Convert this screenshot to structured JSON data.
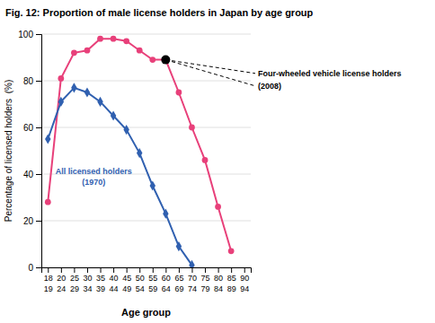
{
  "chart_data": {
    "type": "line",
    "title": "Fig. 12: Proportion of male license holders in Japan by age group",
    "x_label": "Age group",
    "y_label": "Percentage of licensed holders  (%)",
    "categories": [
      "18\n19",
      "20\n24",
      "25\n29",
      "30\n34",
      "35\n39",
      "40\n44",
      "45\n49",
      "50\n54",
      "55\n59",
      "60\n64",
      "65\n69",
      "70\n74",
      "75\n79",
      "80\n84",
      "85\n89",
      "90\n94"
    ],
    "series": [
      {
        "color": "#e8407a",
        "marker": "circle",
        "annotation": [
          "Four-wheeled vehicle license holders",
          "(2008)"
        ],
        "values": [
          28,
          81,
          92,
          93,
          98,
          98,
          97,
          93,
          89,
          89,
          75,
          60,
          46,
          26,
          7,
          null
        ]
      },
      {
        "color": "#3060b0",
        "marker": "diamond",
        "annotation": [
          "All licensed holders",
          "(1970)"
        ],
        "values": [
          55,
          71,
          77,
          75,
          71,
          65,
          59,
          49,
          35,
          23,
          9,
          1,
          null,
          null,
          null,
          null
        ]
      }
    ],
    "highlight": {
      "category": "60\n64",
      "y": 89
    },
    "ylim": [
      0,
      100
    ],
    "yticks": [
      0,
      20,
      40,
      60,
      80,
      100
    ],
    "grid": true
  }
}
